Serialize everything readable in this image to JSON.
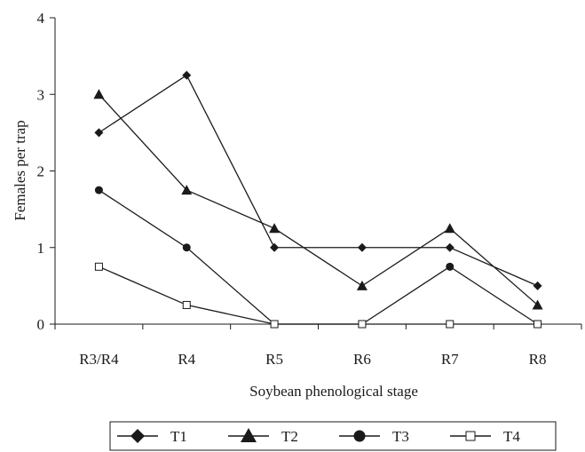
{
  "chart_data": {
    "type": "line",
    "title": "",
    "xlabel": "Soybean phenological stage",
    "ylabel": "Females per trap",
    "categories": [
      "R3/R4",
      "R4",
      "R5",
      "R6",
      "R7",
      "R8"
    ],
    "ylim": [
      0,
      4
    ],
    "yticks": [
      "0",
      "1",
      "2",
      "3",
      "4"
    ],
    "grid": false,
    "legend_position": "bottom",
    "series": [
      {
        "name": "T1",
        "marker": "diamond",
        "values": [
          2.5,
          3.25,
          1.0,
          1.0,
          1.0,
          0.5
        ]
      },
      {
        "name": "T2",
        "marker": "triangle",
        "values": [
          3.0,
          1.75,
          1.25,
          0.5,
          1.25,
          0.25
        ]
      },
      {
        "name": "T3",
        "marker": "circle",
        "values": [
          1.75,
          1.0,
          0.0,
          0.0,
          0.75,
          0.0
        ]
      },
      {
        "name": "T4",
        "marker": "open-square",
        "values": [
          0.75,
          0.25,
          0.0,
          0.0,
          0.0,
          0.0
        ]
      }
    ],
    "colors": {
      "line": "#1a1a1a",
      "marker_fill": "#1a1a1a",
      "open_marker_fill": "#ffffff"
    }
  }
}
